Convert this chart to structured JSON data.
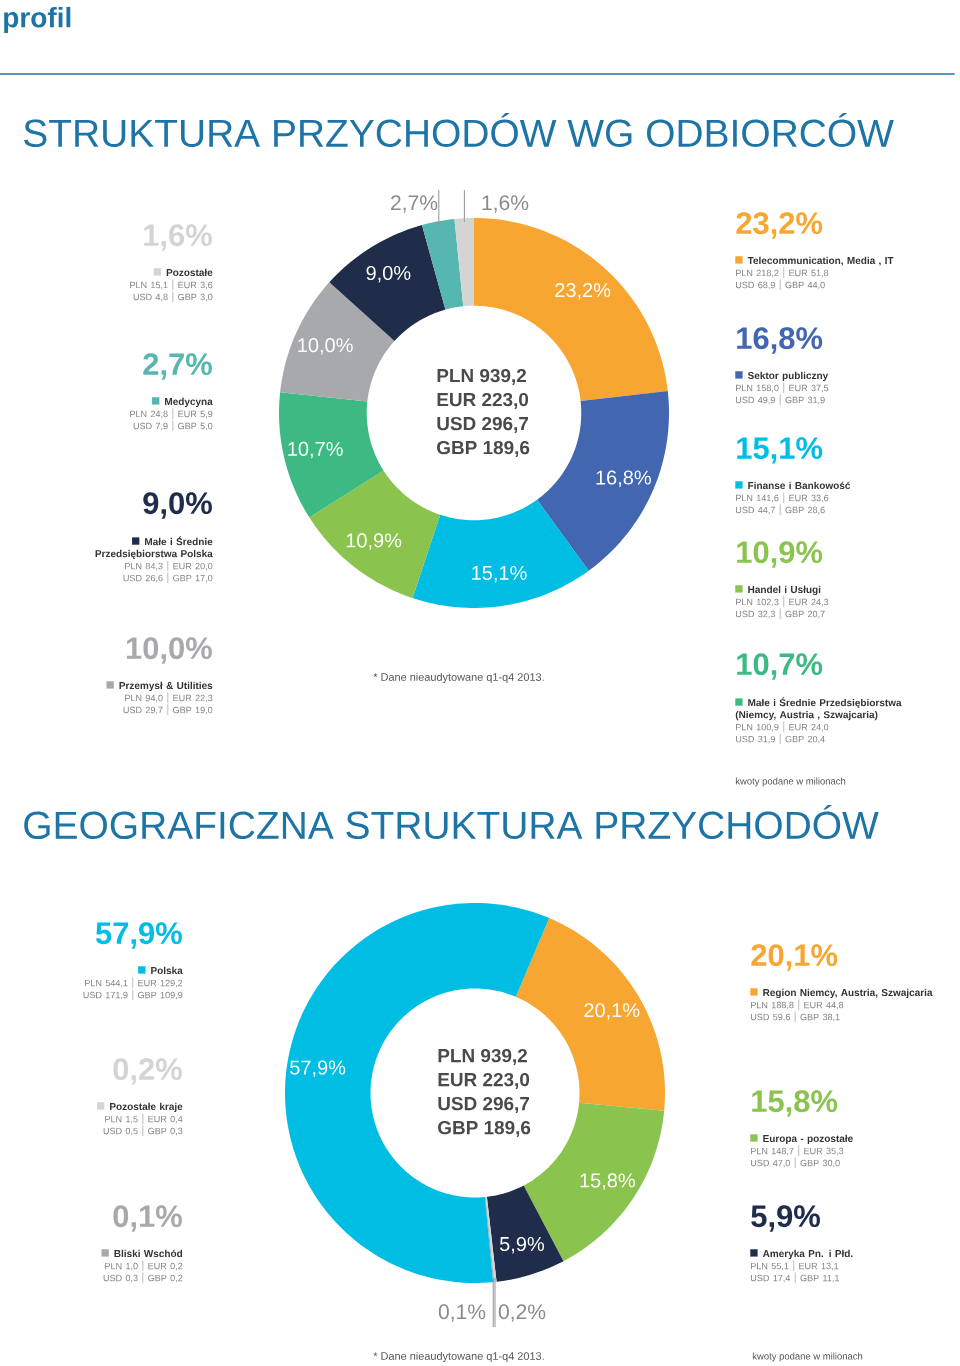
{
  "chart_data": [
    {
      "type": "donut",
      "title": "STRUKTURA PRZYCHODÓW WG ODBIORCÓW",
      "categories": [
        "Telecommunication, Media , IT",
        "Sektor publiczny",
        "Finanse i Bankowość",
        "Handel i Usługi",
        "Małe i Średnie Przedsiębiorstwa (Niemcy, Austria , Szwajcaria)",
        "Przemysł & Utilities",
        "Małe i Średnie Przedsiębiorstwa Polska",
        "Medycyna",
        "Pozostałe"
      ],
      "values": [
        23.2,
        16.8,
        15.1,
        10.9,
        10.7,
        10.0,
        9.0,
        2.7,
        1.6
      ],
      "value_labels": [
        "23,2%",
        "16,8%",
        "15,1%",
        "10,9%",
        "10,7%",
        "10,0%",
        "9,0%",
        "2,7%",
        "1,6%"
      ],
      "colors": [
        "#f7a731",
        "#4266b0",
        "#00bde3",
        "#8bc34f",
        "#3dba84",
        "#a7a9ac",
        "#1f2d4b",
        "#56b6b0",
        "#d4d4d4"
      ],
      "legend": "right",
      "annotations": [
        "PLN 939,2",
        "EUR 223,0",
        "USD 296,7",
        "GBP 189,6",
        "* Dane nieaudytowane q1-q4 2013.",
        "kwoty podane w milionach",
        "PLN 218,2",
        "EUR 51,8",
        "USD 68,9",
        "GBP 44,0",
        "PLN 158,0",
        "EUR 37,5",
        "USD 49,9",
        "GBP 31,9",
        "PLN 141,6",
        "EUR 33,6",
        "USD 44,7",
        "GBP 28,6",
        "PLN 102,3",
        "EUR 24,3",
        "USD 32,3",
        "GBP 20,7",
        "PLN 100,9",
        "EUR 24,0",
        "USD 31,9",
        "GBP 20,4",
        "PLN 94,0",
        "EUR 22,3",
        "USD 29,7",
        "GBP 19,0",
        "PLN 84,3",
        "EUR 20,0",
        "USD 26,6",
        "GBP 17,0",
        "PLN 24,8",
        "EUR 5,9",
        "USD 7,9",
        "GBP 5,0",
        "PLN 15,1",
        "EUR 3,6",
        "USD 4,8",
        "GBP 3,0",
        "profil"
      ]
    },
    {
      "type": "donut",
      "title": "GEOGRAFICZNA STRUKTURA PRZYCHODÓW",
      "categories": [
        "Region Niemcy, Austria, Szwajcaria",
        "Europa - pozostałe",
        "Ameryka Pn. i Płd.",
        "Pozostałe kraje",
        "Bliski Wschód",
        "Polska"
      ],
      "values": [
        20.1,
        15.8,
        5.9,
        0.2,
        0.1,
        57.9
      ],
      "value_labels": [
        "20,1%",
        "15,8%",
        "5,9%",
        "0,2%",
        "0,1%",
        "57,9%"
      ],
      "colors": [
        "#f7a731",
        "#8bc34f",
        "#1f2d4b",
        "#d4d4d4",
        "#a7a9ac",
        "#00bde3"
      ],
      "legend": "right",
      "annotations": [
        "PLN 939,2",
        "EUR 223,0",
        "USD 296,7",
        "GBP 189,6",
        "* Dane nieaudytowane q1-q4 2013.",
        "kwoty podane w milionach",
        "PLN 188,8",
        "EUR 44,8",
        "USD 59,6",
        "GBP 38,1",
        "PLN 148,7",
        "EUR 35,3",
        "USD 47,0",
        "GBP 30,0",
        "PLN 55,1",
        "EUR 13,1",
        "USD 17,4",
        "GBP 11,1",
        "PLN 1,5",
        "EUR 0,4",
        "USD 0,5",
        "GBP 0,3",
        "PLN 1,0",
        "EUR 0,2",
        "USD 0,3",
        "GBP 0,2",
        "PLN 544,1",
        "EUR 129,2",
        "USD 171,9",
        "GBP 109,9"
      ]
    }
  ]
}
